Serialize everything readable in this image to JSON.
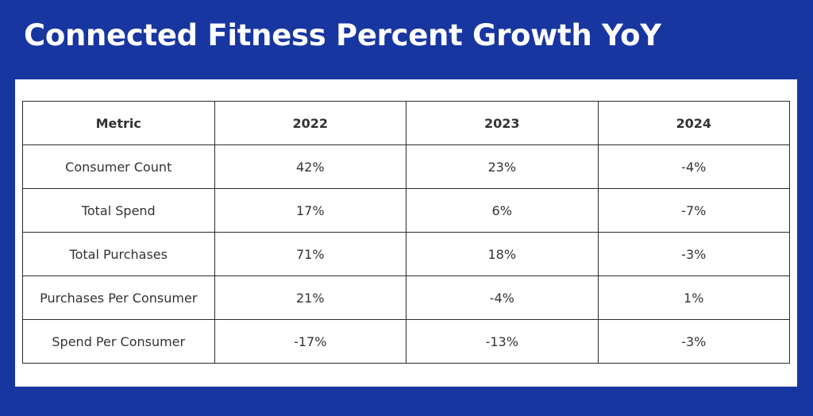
{
  "title": "Connected Fitness Percent Growth YoY",
  "colors": {
    "background": "#1836a0",
    "panel": "#ffffff",
    "border": "#2b2b2b",
    "text": "#333333"
  },
  "chart_data": {
    "type": "table",
    "title": "Connected Fitness Percent Growth YoY",
    "columns": [
      "Metric",
      "2022",
      "2023",
      "2024"
    ],
    "rows": [
      [
        "Consumer Count",
        "42%",
        "23%",
        "-4%"
      ],
      [
        "Total Spend",
        "17%",
        "6%",
        "-7%"
      ],
      [
        "Total Purchases",
        "71%",
        "18%",
        "-3%"
      ],
      [
        "Purchases Per Consumer",
        "21%",
        "-4%",
        "1%"
      ],
      [
        "Spend Per Consumer",
        "-17%",
        "-13%",
        "-3%"
      ]
    ]
  }
}
